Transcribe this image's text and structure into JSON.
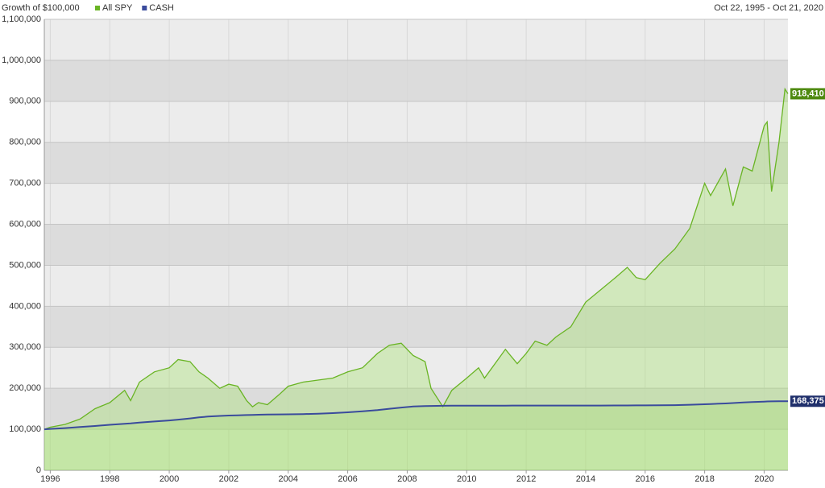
{
  "chart_data": {
    "type": "line",
    "title": "Growth of $100,000",
    "date_range": "Oct 22, 1995 - Oct 21, 2020",
    "x": [
      1995.8,
      1996.0,
      1996.5,
      1997.0,
      1997.5,
      1998.0,
      1998.5,
      1998.7,
      1999.0,
      1999.5,
      2000.0,
      2000.3,
      2000.7,
      2001.0,
      2001.3,
      2001.7,
      2002.0,
      2002.3,
      2002.6,
      2002.8,
      2003.0,
      2003.3,
      2003.7,
      2004.0,
      2004.5,
      2005.0,
      2005.5,
      2006.0,
      2006.5,
      2007.0,
      2007.4,
      2007.8,
      2008.2,
      2008.6,
      2008.8,
      2009.2,
      2009.5,
      2010.0,
      2010.4,
      2010.6,
      2011.0,
      2011.3,
      2011.7,
      2012.0,
      2012.3,
      2012.7,
      2013.0,
      2013.5,
      2014.0,
      2014.5,
      2015.0,
      2015.4,
      2015.7,
      2016.0,
      2016.5,
      2017.0,
      2017.5,
      2018.0,
      2018.2,
      2018.7,
      2018.95,
      2019.3,
      2019.6,
      2020.0,
      2020.1,
      2020.25,
      2020.5,
      2020.7,
      2020.8
    ],
    "series": [
      {
        "name": "All SPY",
        "color": "#69b424",
        "fill": "rgba(160,225,100,0.35)",
        "values": [
          100000,
          105000,
          112000,
          125000,
          150000,
          165000,
          195000,
          170000,
          215000,
          240000,
          250000,
          270000,
          265000,
          240000,
          225000,
          200000,
          210000,
          205000,
          170000,
          155000,
          165000,
          160000,
          185000,
          205000,
          215000,
          220000,
          225000,
          240000,
          250000,
          285000,
          305000,
          310000,
          280000,
          265000,
          200000,
          155000,
          195000,
          225000,
          250000,
          225000,
          265000,
          295000,
          260000,
          285000,
          315000,
          305000,
          325000,
          350000,
          410000,
          440000,
          470000,
          495000,
          470000,
          465000,
          505000,
          540000,
          590000,
          700000,
          670000,
          735000,
          645000,
          740000,
          730000,
          840000,
          850000,
          680000,
          800000,
          930000,
          918410
        ],
        "value_labels": [
          null,
          null,
          null,
          null,
          null,
          null,
          null,
          null,
          null,
          null,
          null,
          null,
          null,
          null,
          null,
          null,
          null,
          null,
          null,
          null,
          null,
          null,
          null,
          null,
          null,
          null,
          null,
          null,
          null,
          null,
          null,
          null,
          null,
          null,
          null,
          null,
          null,
          null,
          null,
          null,
          null,
          null,
          null,
          null,
          null,
          null,
          null,
          null,
          null,
          null,
          null,
          null,
          null,
          null,
          null,
          null,
          null,
          null,
          null,
          null,
          null,
          null,
          null,
          null,
          null,
          null,
          null,
          null,
          "918,410"
        ]
      },
      {
        "name": "CASH",
        "color": "#3a4b9c",
        "fill": "rgba(160,225,100,0.25)",
        "values": [
          100000,
          101000,
          103000,
          105500,
          108000,
          111000,
          113500,
          114500,
          116500,
          119000,
          121500,
          123500,
          126500,
          129000,
          131000,
          132500,
          133500,
          134000,
          134800,
          135200,
          135500,
          136000,
          136300,
          136600,
          137200,
          138000,
          139500,
          141500,
          144000,
          147000,
          150000,
          153000,
          155500,
          156500,
          157000,
          157300,
          157500,
          157600,
          157700,
          157700,
          157800,
          157800,
          157900,
          157900,
          157900,
          158000,
          158000,
          158000,
          158000,
          158000,
          158100,
          158200,
          158300,
          158400,
          158600,
          159000,
          159800,
          161000,
          161600,
          163000,
          164000,
          165500,
          166500,
          167600,
          167900,
          168100,
          168250,
          168350,
          168375
        ],
        "value_labels": [
          null,
          null,
          null,
          null,
          null,
          null,
          null,
          null,
          null,
          null,
          null,
          null,
          null,
          null,
          null,
          null,
          null,
          null,
          null,
          null,
          null,
          null,
          null,
          null,
          null,
          null,
          null,
          null,
          null,
          null,
          null,
          null,
          null,
          null,
          null,
          null,
          null,
          null,
          null,
          null,
          null,
          null,
          null,
          null,
          null,
          null,
          null,
          null,
          null,
          null,
          null,
          null,
          null,
          null,
          null,
          null,
          null,
          null,
          null,
          null,
          null,
          null,
          null,
          null,
          null,
          null,
          null,
          null,
          "168,375"
        ]
      }
    ],
    "xlim": [
      1995.8,
      2020.8
    ],
    "xticks": [
      1996,
      1998,
      2000,
      2002,
      2004,
      2006,
      2008,
      2010,
      2012,
      2014,
      2016,
      2018,
      2020
    ],
    "ylim": [
      0,
      1100000
    ],
    "yticks": [
      0,
      {
        "value": 100000,
        "label": "100,000"
      },
      {
        "value": 200000,
        "label": "200,000"
      },
      {
        "value": 300000,
        "label": "300,000"
      },
      {
        "value": 400000,
        "label": "400,000"
      },
      {
        "value": 500000,
        "label": "500,000"
      },
      {
        "value": 600000,
        "label": "600,000"
      },
      {
        "value": 700000,
        "label": "700,000"
      },
      {
        "value": 800000,
        "label": "800,000"
      },
      {
        "value": 900000,
        "label": "900,000"
      },
      {
        "value": 1000000,
        "label": "1,000,000"
      },
      {
        "value": 1100000,
        "label": "1,100,000"
      }
    ],
    "grid": true
  }
}
